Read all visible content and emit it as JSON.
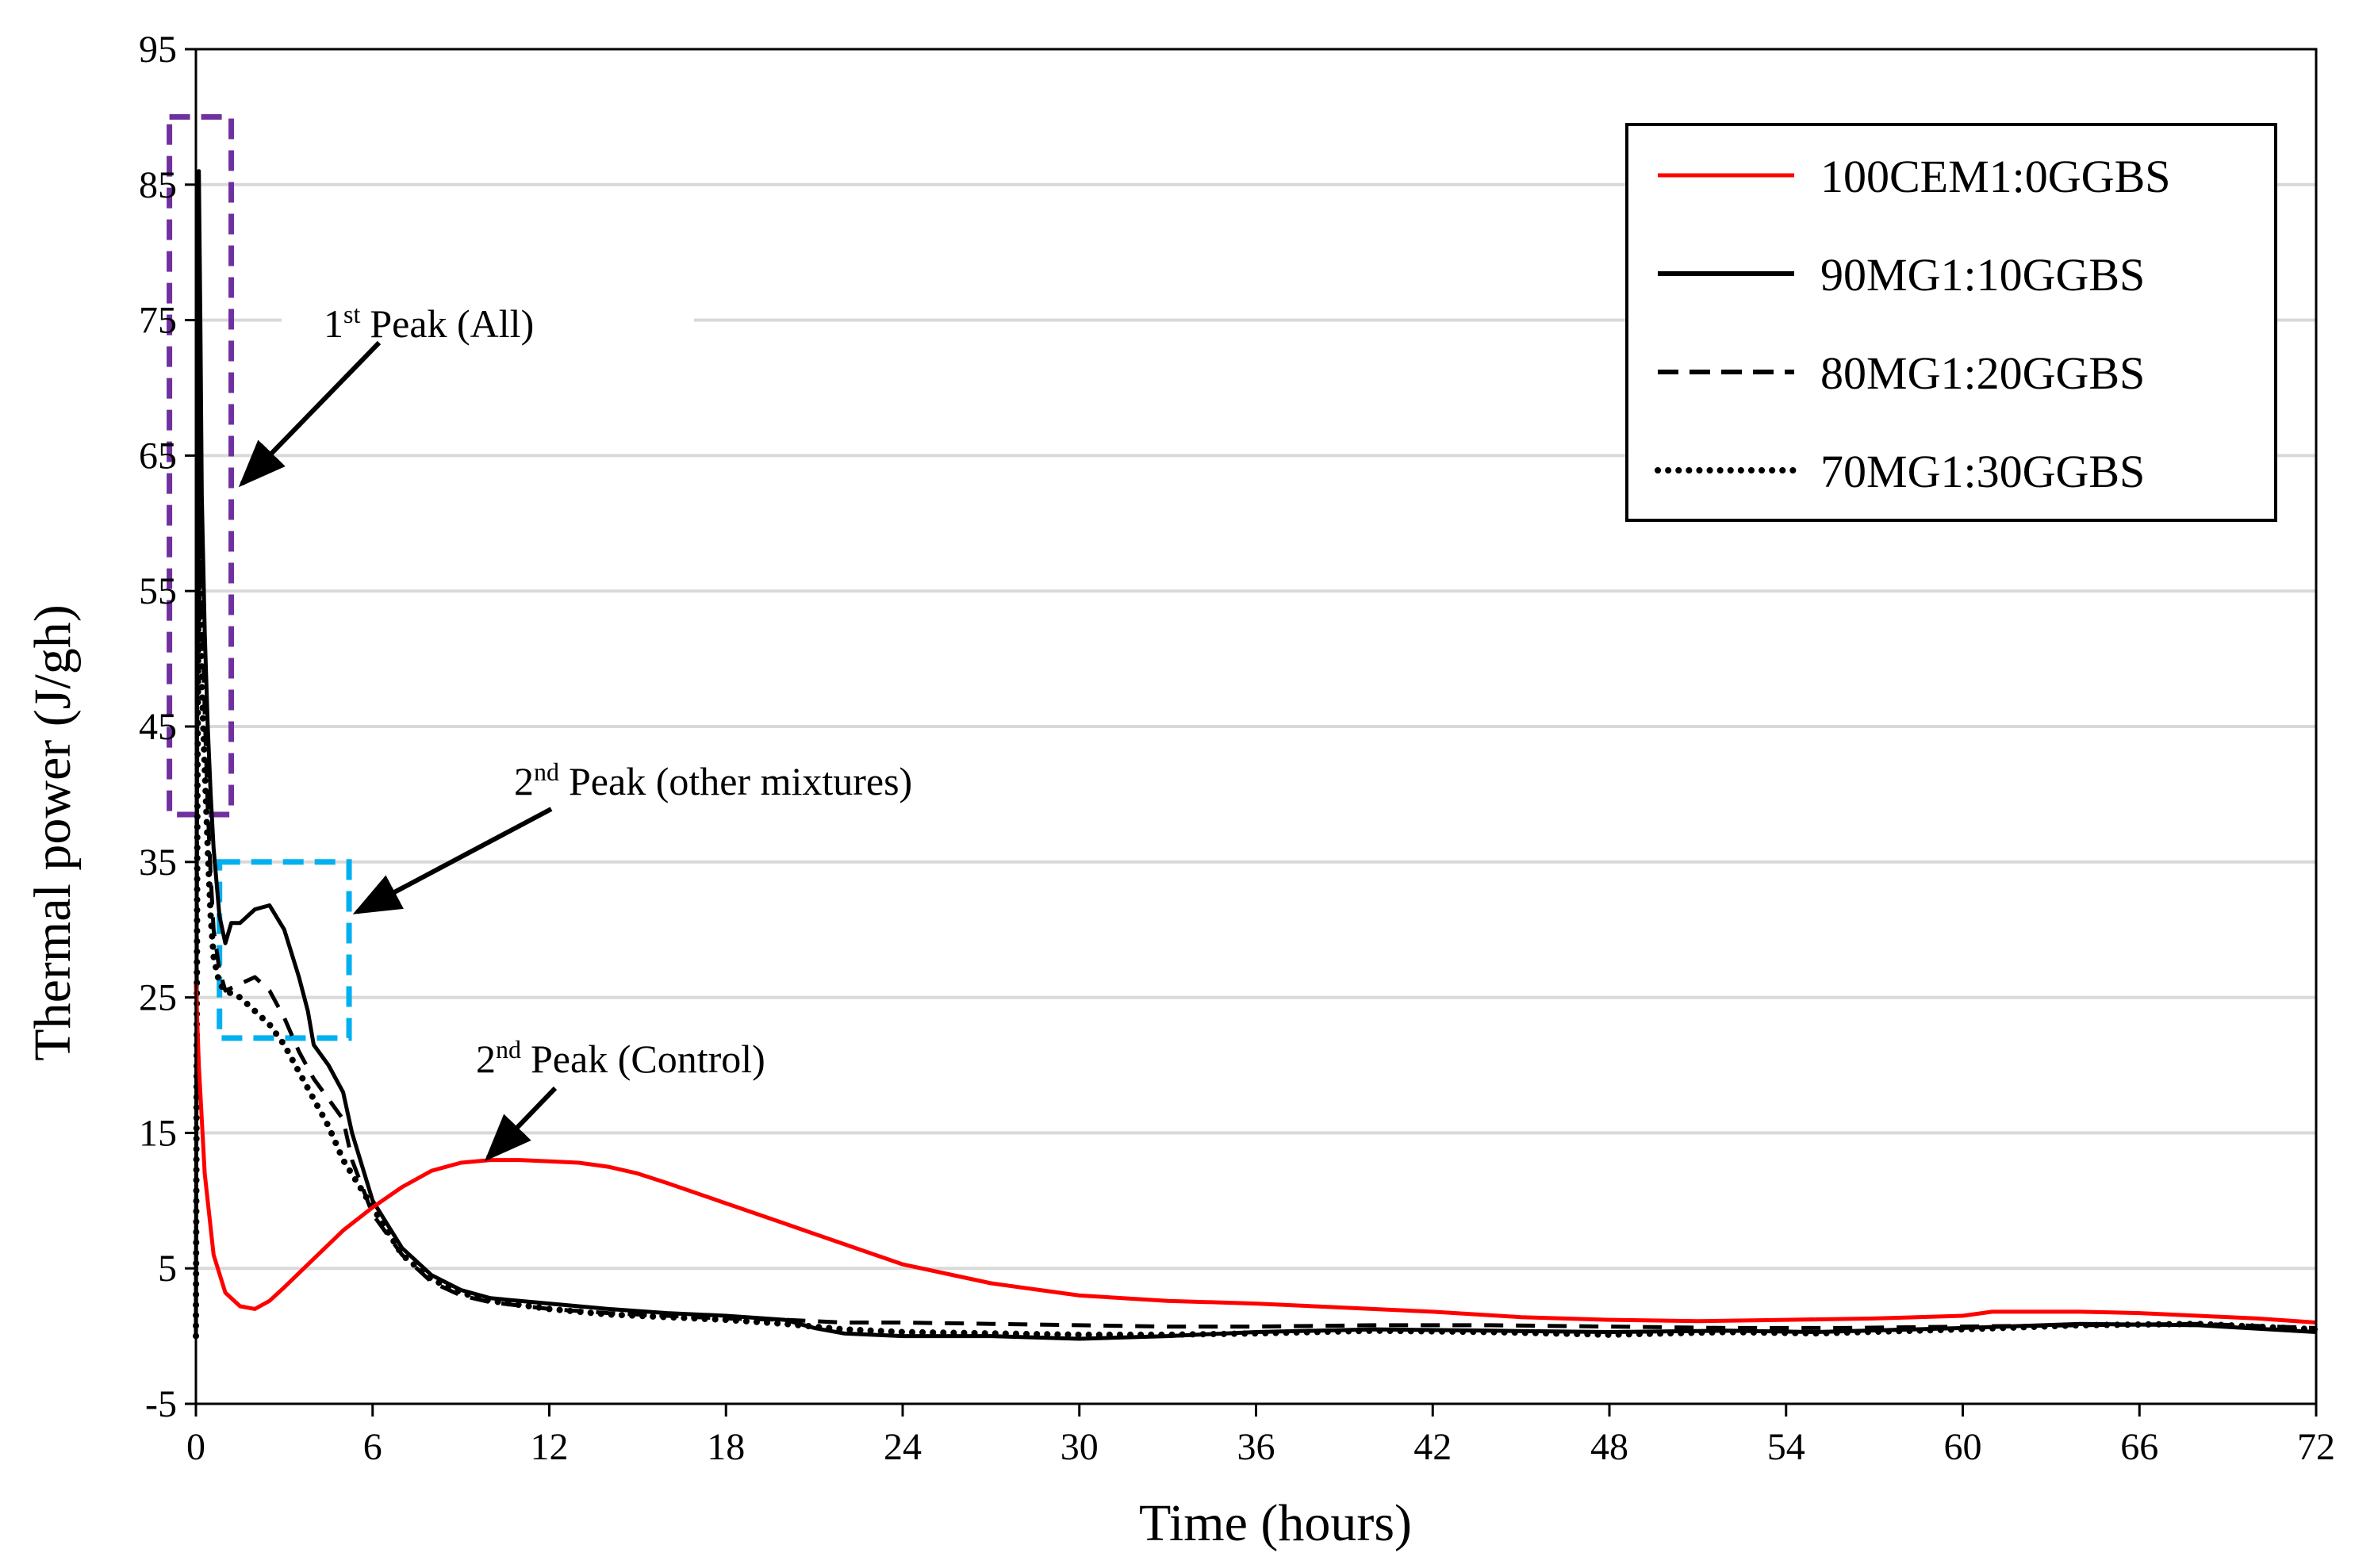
{
  "chart_data": {
    "type": "line",
    "title": "",
    "xlabel": "Time (hours)",
    "ylabel": "Thermal power (J/gh)",
    "xlim": [
      0,
      72
    ],
    "ylim": [
      -5,
      95
    ],
    "xticks": [
      0,
      6,
      12,
      18,
      24,
      30,
      36,
      42,
      48,
      54,
      60,
      66,
      72
    ],
    "yticks": [
      -5,
      5,
      15,
      25,
      35,
      45,
      55,
      65,
      75,
      85,
      95
    ],
    "grid": "horizontal",
    "legend_position": "top-right",
    "series": [
      {
        "name": "100CEM1:0GGBS",
        "color": "#ff0000",
        "style": "solid",
        "x": [
          0,
          0.1,
          0.3,
          0.6,
          1,
          1.5,
          2,
          2.5,
          3,
          4,
          5,
          6,
          7,
          8,
          9,
          10,
          11,
          12,
          13,
          14,
          15,
          16,
          18,
          20,
          22,
          24,
          27,
          30,
          33,
          36,
          39,
          42,
          45,
          48,
          51,
          54,
          57,
          60,
          61,
          62,
          64,
          66,
          68,
          70,
          72
        ],
        "y": [
          26,
          20,
          12,
          6,
          3.2,
          2.2,
          2.0,
          2.6,
          3.6,
          5.7,
          7.8,
          9.5,
          11,
          12.2,
          12.8,
          13.0,
          13.0,
          12.9,
          12.8,
          12.5,
          12.0,
          11.3,
          9.8,
          8.3,
          6.8,
          5.3,
          3.9,
          3.0,
          2.6,
          2.4,
          2.1,
          1.8,
          1.4,
          1.2,
          1.1,
          1.2,
          1.3,
          1.5,
          1.8,
          1.8,
          1.8,
          1.7,
          1.5,
          1.3,
          1.0
        ]
      },
      {
        "name": "90MG1:10GGBS",
        "color": "#000000",
        "style": "solid",
        "x": [
          0,
          0.05,
          0.1,
          0.15,
          0.2,
          0.3,
          0.4,
          0.5,
          0.6,
          0.8,
          1,
          1.2,
          1.5,
          2,
          2.5,
          3,
          3.5,
          3.8,
          4,
          4.5,
          5,
          5.3,
          6,
          7,
          8,
          9,
          10,
          12,
          14,
          16,
          18,
          20,
          21,
          22,
          24,
          27,
          30,
          33,
          36,
          40,
          44,
          48,
          52,
          55,
          60,
          64,
          68,
          72
        ],
        "y": [
          0,
          60,
          86,
          75,
          62,
          52,
          45,
          40,
          36,
          31,
          29,
          30.5,
          30.5,
          31.5,
          31.8,
          30,
          26.5,
          24,
          21.5,
          20,
          18,
          15,
          10,
          6.5,
          4.5,
          3.4,
          2.8,
          2.4,
          2.0,
          1.7,
          1.5,
          1.2,
          0.6,
          0.2,
          0,
          0,
          -0.2,
          0,
          0.3,
          0.5,
          0.4,
          0.3,
          0.4,
          0.3,
          0.6,
          0.9,
          0.8,
          0.3
        ]
      },
      {
        "name": "80MG1:20GGBS",
        "color": "#000000",
        "style": "dashed",
        "x": [
          0,
          0.05,
          0.1,
          0.15,
          0.2,
          0.3,
          0.4,
          0.5,
          0.6,
          0.8,
          1,
          1.5,
          2,
          2.5,
          3,
          3.5,
          4,
          4.5,
          5,
          5.3,
          6,
          7,
          8,
          9,
          10,
          12,
          14,
          16,
          18,
          20,
          22,
          24,
          27,
          30,
          33,
          36,
          40,
          44,
          48,
          52,
          56,
          60,
          64,
          68,
          72
        ],
        "y": [
          0,
          50,
          74,
          65,
          55,
          46,
          39,
          34,
          30,
          27,
          25.5,
          26,
          26.5,
          25.5,
          23.5,
          21,
          19,
          17.5,
          16,
          13,
          9,
          6,
          4,
          3,
          2.5,
          2.0,
          1.7,
          1.5,
          1.3,
          1.2,
          1.0,
          1.0,
          0.9,
          0.8,
          0.7,
          0.7,
          0.8,
          0.8,
          0.7,
          0.6,
          0.6,
          0.7,
          0.8,
          0.9,
          0.6
        ]
      },
      {
        "name": "70MG1:30GGBS",
        "color": "#000000",
        "style": "dotted",
        "x": [
          0,
          0.05,
          0.1,
          0.15,
          0.2,
          0.3,
          0.4,
          0.5,
          0.6,
          0.8,
          1,
          1.5,
          2,
          2.5,
          3,
          3.5,
          4,
          4.5,
          5,
          6,
          7,
          8,
          9,
          10,
          12,
          14,
          16,
          18,
          20,
          22,
          24,
          27,
          30,
          33,
          36,
          40,
          44,
          48,
          52,
          55,
          60,
          64,
          68,
          72
        ],
        "y": [
          0,
          40,
          60,
          55,
          48,
          42,
          36,
          31,
          28,
          26,
          25.5,
          25,
          24,
          23,
          21.5,
          19.5,
          17.5,
          15.5,
          13,
          9.5,
          6,
          4.2,
          3.2,
          2.6,
          2.0,
          1.6,
          1.4,
          1.2,
          0.9,
          0.5,
          0.3,
          0.2,
          0.1,
          0.1,
          0.2,
          0.4,
          0.3,
          0.1,
          0.3,
          0.2,
          0.5,
          0.8,
          0.9,
          0.5
        ]
      }
    ],
    "annotations": [
      {
        "label": "st",
        "prefix": "1",
        "text": "Peak (All)"
      },
      {
        "label": "nd",
        "prefix": "2",
        "text": "Peak (other mixtures)"
      },
      {
        "label": "nd",
        "prefix": "2",
        "text": "Peak (Control)"
      }
    ],
    "highlight_boxes": [
      {
        "color": "#7030a0",
        "x_range": [
          -0.9,
          1.2
        ],
        "y_range": [
          38.5,
          90
        ]
      },
      {
        "color": "#00b0f0",
        "x_range": [
          0.8,
          5.2
        ],
        "y_range": [
          22,
          35
        ]
      }
    ]
  }
}
